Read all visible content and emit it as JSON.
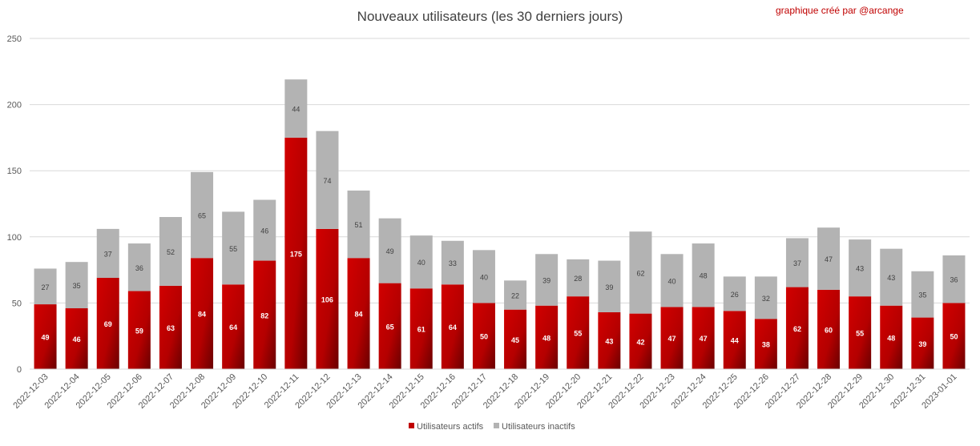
{
  "chart_data": {
    "type": "bar",
    "stacked": true,
    "title": "Nouveaux utilisateurs  (les 30 derniers  jours)",
    "credit": "graphique créé par @arcange",
    "ylim": [
      0,
      250
    ],
    "yticks": [
      0,
      50,
      100,
      150,
      200,
      250
    ],
    "grid": true,
    "legend_position": "bottom",
    "categories": [
      "2022-12-03",
      "2022-12-04",
      "2022-12-05",
      "2022-12-06",
      "2022-12-07",
      "2022-12-08",
      "2022-12-09",
      "2022-12-10",
      "2022-12-11",
      "2022-12-12",
      "2022-12-13",
      "2022-12-14",
      "2022-12-15",
      "2022-12-16",
      "2022-12-17",
      "2022-12-18",
      "2022-12-19",
      "2022-12-20",
      "2022-12-21",
      "2022-12-22",
      "2022-12-23",
      "2022-12-24",
      "2022-12-25",
      "2022-12-26",
      "2022-12-27",
      "2022-12-28",
      "2022-12-29",
      "2022-12-30",
      "2022-12-31",
      "2023-01-01"
    ],
    "series": [
      {
        "name": "Utilisateurs actifs",
        "color": "#c00000",
        "values": [
          49,
          46,
          69,
          59,
          63,
          84,
          64,
          82,
          175,
          106,
          84,
          65,
          61,
          64,
          50,
          45,
          48,
          55,
          43,
          42,
          47,
          47,
          44,
          38,
          62,
          60,
          55,
          48,
          39,
          50
        ]
      },
      {
        "name": "Utilisateurs inactifs",
        "color": "#b3b3b3",
        "values": [
          27,
          35,
          37,
          36,
          52,
          65,
          55,
          46,
          44,
          74,
          51,
          49,
          40,
          33,
          40,
          22,
          39,
          28,
          39,
          62,
          40,
          48,
          26,
          32,
          37,
          47,
          43,
          43,
          35,
          36
        ]
      }
    ]
  }
}
